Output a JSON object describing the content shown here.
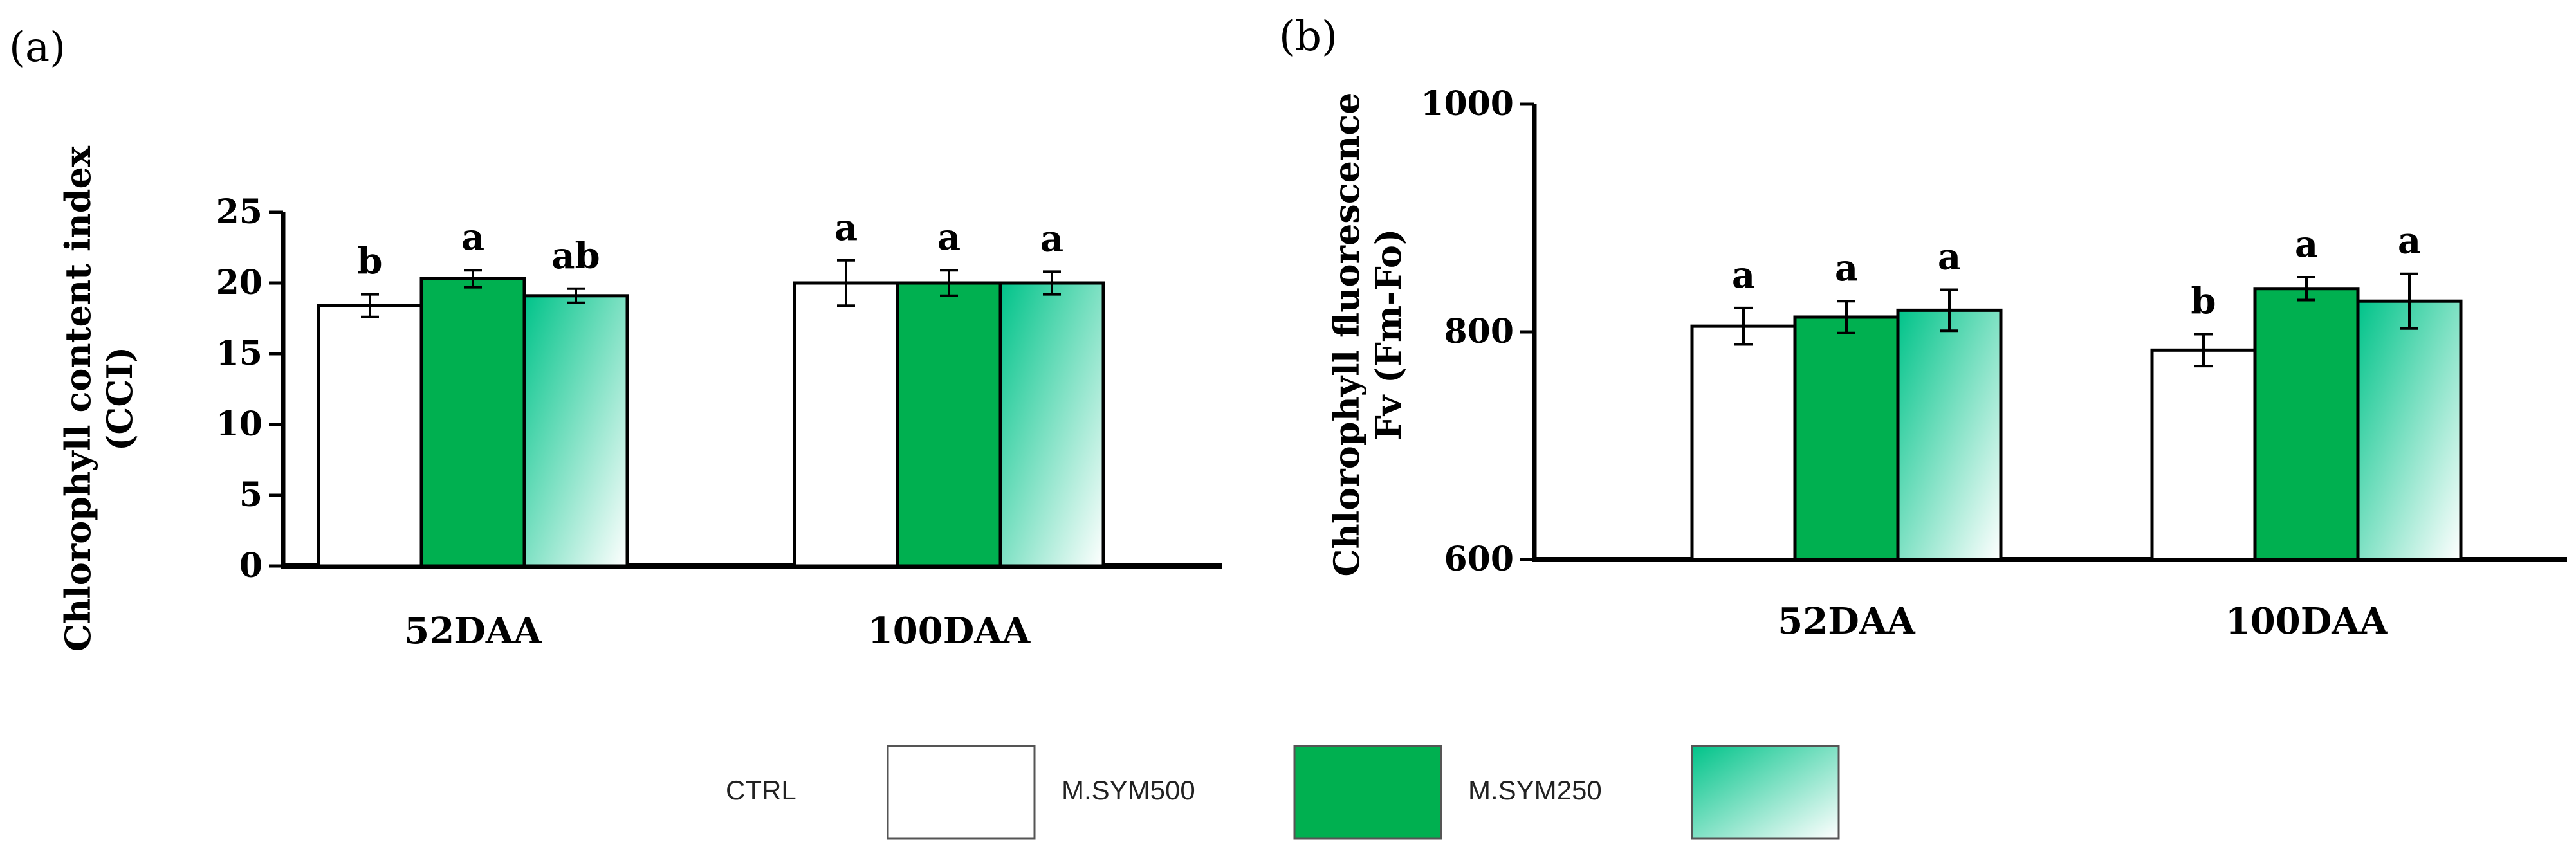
{
  "colors": {
    "ctrl": "#ffffff",
    "msym500": "#00b050",
    "msym250_dark": "#00c389",
    "msym250_light": "#ffffff",
    "stroke": "#000000"
  },
  "legend": [
    {
      "label": "CTRL",
      "key": "ctrl"
    },
    {
      "label": "M.SYM500",
      "key": "msym500"
    },
    {
      "label": "M.SYM250",
      "key": "msym250"
    }
  ],
  "chart_data": [
    {
      "panel_label": "(a)",
      "type": "bar",
      "ylabel_line1": "Chlorophyll content index",
      "ylabel_line2": "(CCI)",
      "ylim": [
        0,
        25
      ],
      "yticks": [
        0,
        5,
        10,
        15,
        20,
        25
      ],
      "categories": [
        "52DAA",
        "100DAA"
      ],
      "series": [
        {
          "name": "CTRL",
          "key": "ctrl",
          "values": [
            18.4,
            20.0
          ],
          "errors": [
            0.8,
            1.6
          ],
          "letters": [
            "b",
            "a"
          ]
        },
        {
          "name": "M.SYM500",
          "key": "msym500",
          "values": [
            20.3,
            20.0
          ],
          "errors": [
            0.6,
            0.9
          ],
          "letters": [
            "a",
            "a"
          ]
        },
        {
          "name": "M.SYM250",
          "key": "msym250",
          "values": [
            19.1,
            20.0
          ],
          "errors": [
            0.5,
            0.8
          ],
          "letters": [
            "ab",
            "a"
          ]
        }
      ]
    },
    {
      "panel_label": "(b)",
      "type": "bar",
      "ylabel_line1": "Chlorophyll fluorescence",
      "ylabel_line2": "Fv (Fm-Fo)",
      "ylim": [
        600,
        1000
      ],
      "yticks": [
        600,
        800,
        1000
      ],
      "categories": [
        "52DAA",
        "100DAA"
      ],
      "series": [
        {
          "name": "CTRL",
          "key": "ctrl",
          "values": [
            805,
            784
          ],
          "errors": [
            16,
            14
          ],
          "letters": [
            "a",
            "b"
          ]
        },
        {
          "name": "M.SYM500",
          "key": "msym500",
          "values": [
            813,
            838
          ],
          "errors": [
            14,
            10
          ],
          "letters": [
            "a",
            "a"
          ]
        },
        {
          "name": "M.SYM250",
          "key": "msym250",
          "values": [
            819,
            827
          ],
          "errors": [
            18,
            24
          ],
          "letters": [
            "a",
            "a"
          ]
        }
      ]
    }
  ]
}
